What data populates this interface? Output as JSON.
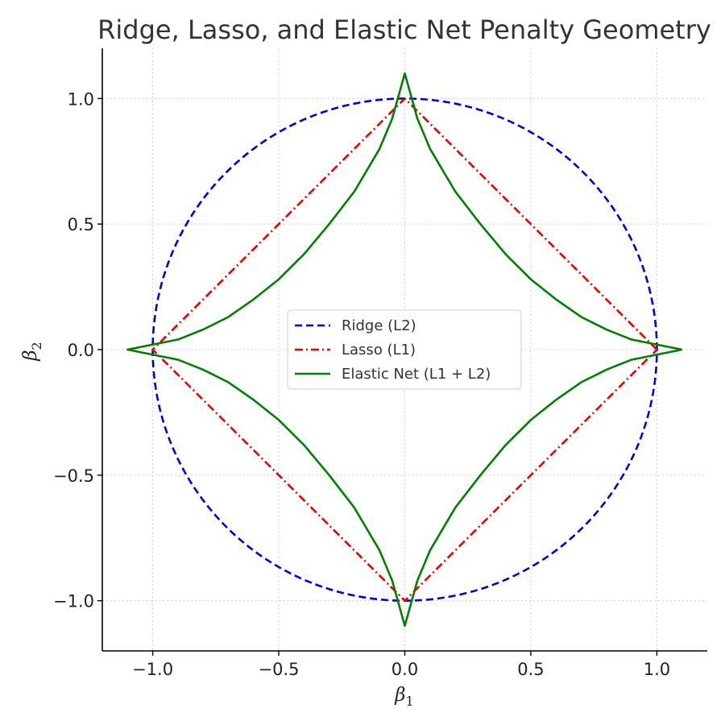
{
  "chart_data": {
    "type": "line",
    "title": "Ridge, Lasso, and Elastic Net Penalty Geometry",
    "xlabel": {
      "base": "β",
      "sub": "1"
    },
    "ylabel": {
      "base": "β",
      "sub": "2"
    },
    "xlim": [
      -1.2,
      1.2
    ],
    "ylim": [
      -1.2,
      1.2
    ],
    "xticks": [
      -1.0,
      -0.5,
      0.0,
      0.5,
      1.0
    ],
    "yticks": [
      -1.0,
      -0.5,
      0.0,
      0.5,
      1.0
    ],
    "xtick_labels": [
      "−1.0",
      "−0.5",
      "0.0",
      "0.5",
      "1.0"
    ],
    "ytick_labels": [
      "−1.0",
      "−0.5",
      "0.0",
      "0.5",
      "1.0"
    ],
    "grid": true,
    "legend_position": "center",
    "series": [
      {
        "name": "Ridge (L2)",
        "color": "#0000dd",
        "style": "dashed",
        "points": [
          [
            1,
            0
          ],
          [
            0.924,
            0.383
          ],
          [
            0.707,
            0.707
          ],
          [
            0.383,
            0.924
          ],
          [
            0,
            1
          ],
          [
            -0.383,
            0.924
          ],
          [
            -0.707,
            0.707
          ],
          [
            -0.924,
            0.383
          ],
          [
            -1,
            0
          ],
          [
            -0.924,
            -0.383
          ],
          [
            -0.707,
            -0.707
          ],
          [
            -0.383,
            -0.924
          ],
          [
            0,
            -1
          ],
          [
            0.383,
            -0.924
          ],
          [
            0.707,
            -0.707
          ],
          [
            0.924,
            -0.383
          ],
          [
            1,
            0
          ]
        ]
      },
      {
        "name": "Lasso (L1)",
        "color": "#ee0000",
        "style": "dashdot",
        "points": [
          [
            1,
            0
          ],
          [
            0,
            1
          ],
          [
            -1,
            0
          ],
          [
            0,
            -1
          ],
          [
            1,
            0
          ]
        ]
      },
      {
        "name": "Elastic Net (L1 + L2)",
        "color": "#008000",
        "style": "solid",
        "points": [
          [
            1.1,
            0
          ],
          [
            1.0,
            0.02
          ],
          [
            0.9,
            0.04
          ],
          [
            0.8,
            0.08
          ],
          [
            0.7,
            0.13
          ],
          [
            0.6,
            0.2
          ],
          [
            0.5,
            0.28
          ],
          [
            0.4,
            0.38
          ],
          [
            0.3,
            0.5
          ],
          [
            0.2,
            0.63
          ],
          [
            0.1,
            0.8
          ],
          [
            0.05,
            0.92
          ],
          [
            0,
            1.1
          ],
          [
            -0.05,
            0.92
          ],
          [
            -0.1,
            0.8
          ],
          [
            -0.2,
            0.63
          ],
          [
            -0.3,
            0.5
          ],
          [
            -0.4,
            0.38
          ],
          [
            -0.5,
            0.28
          ],
          [
            -0.6,
            0.2
          ],
          [
            -0.7,
            0.13
          ],
          [
            -0.8,
            0.08
          ],
          [
            -0.9,
            0.04
          ],
          [
            -1.0,
            0.02
          ],
          [
            -1.1,
            0
          ],
          [
            -1.0,
            -0.02
          ],
          [
            -0.9,
            -0.04
          ],
          [
            -0.8,
            -0.08
          ],
          [
            -0.7,
            -0.13
          ],
          [
            -0.6,
            -0.2
          ],
          [
            -0.5,
            -0.28
          ],
          [
            -0.4,
            -0.38
          ],
          [
            -0.3,
            -0.5
          ],
          [
            -0.2,
            -0.63
          ],
          [
            -0.1,
            -0.8
          ],
          [
            -0.05,
            -0.92
          ],
          [
            0,
            -1.1
          ],
          [
            0.05,
            -0.92
          ],
          [
            0.1,
            -0.8
          ],
          [
            0.2,
            -0.63
          ],
          [
            0.3,
            -0.5
          ],
          [
            0.4,
            -0.38
          ],
          [
            0.5,
            -0.28
          ],
          [
            0.6,
            -0.2
          ],
          [
            0.7,
            -0.13
          ],
          [
            0.8,
            -0.08
          ],
          [
            0.9,
            -0.04
          ],
          [
            1.0,
            -0.02
          ],
          [
            1.1,
            0
          ]
        ]
      }
    ]
  }
}
